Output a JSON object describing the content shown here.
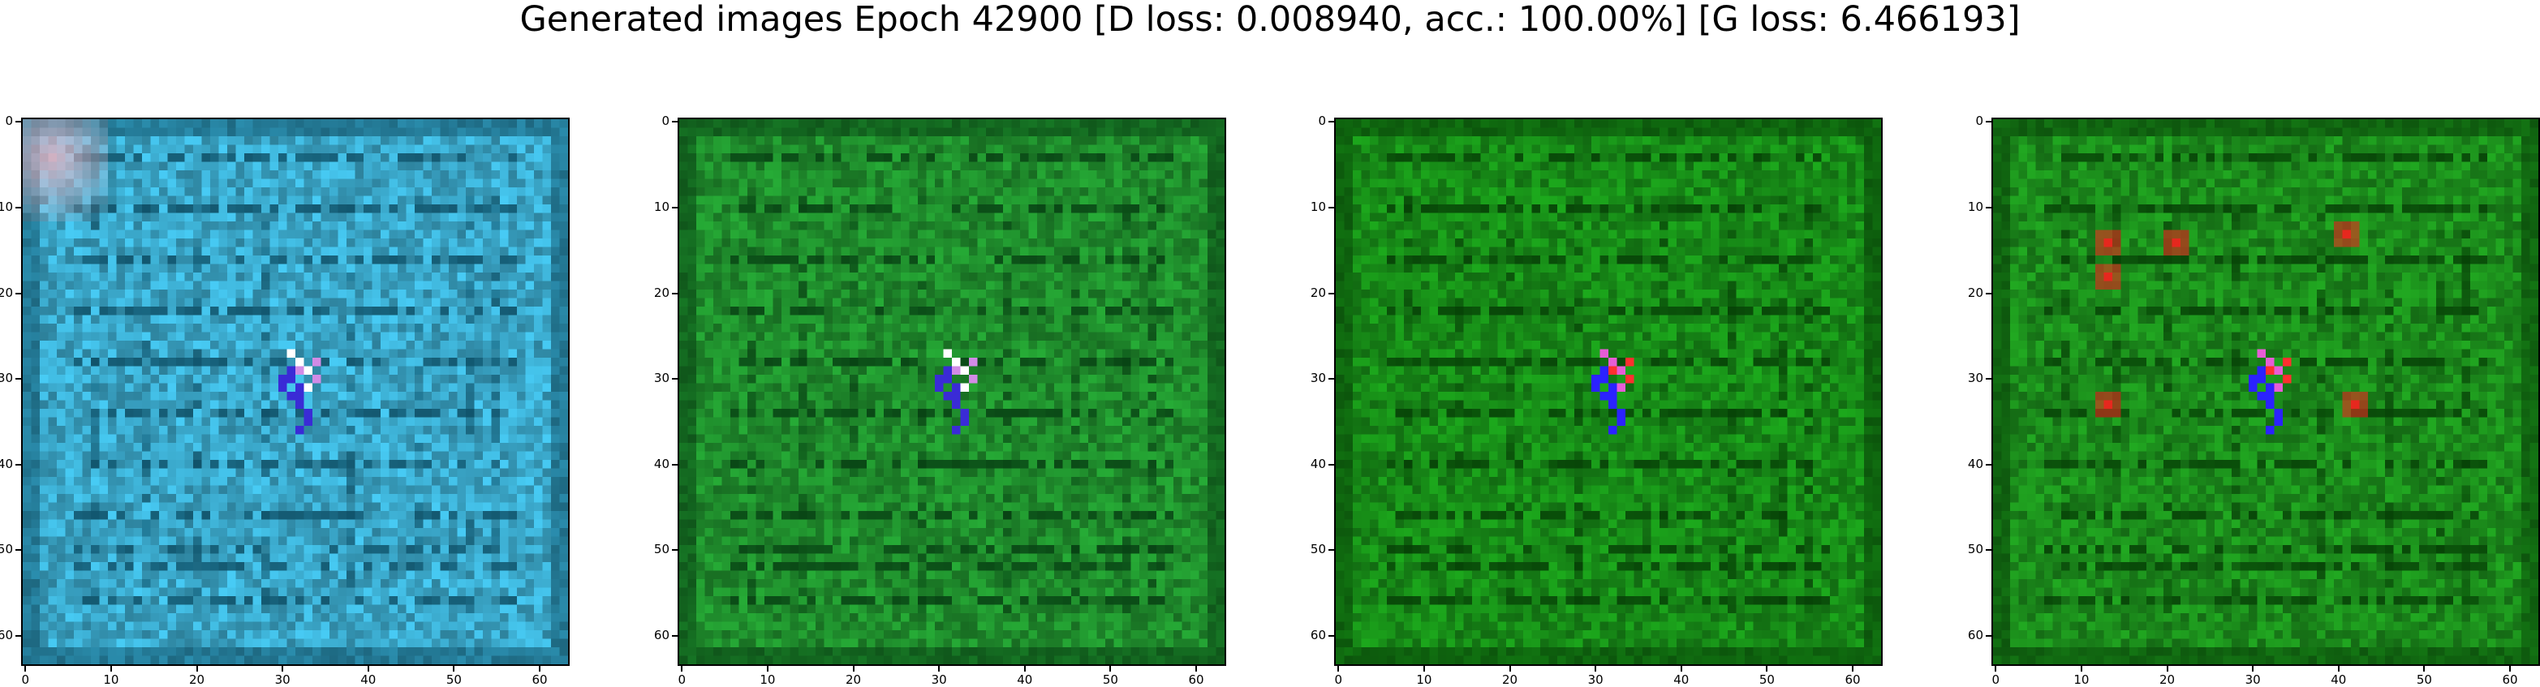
{
  "figure": {
    "title": "Generated images Epoch 42900 [D loss: 0.008940, acc.: 100.00%] [G loss: 6.466193]"
  },
  "axes": {
    "x_ticks": [
      "0",
      "10",
      "20",
      "30",
      "40",
      "50",
      "60"
    ],
    "y_ticks": [
      "0",
      "10",
      "20",
      "30",
      "40",
      "50",
      "60"
    ],
    "range": [
      0,
      63
    ]
  },
  "panels": [
    {
      "name": "generated-image-1",
      "background": "#3aa6c8",
      "stripe": "#0e4f66",
      "blob": [
        "#ffffff",
        "#3a2bd6",
        "#d28be6"
      ],
      "corner_tint": "#e9b3c2",
      "red_spots": []
    },
    {
      "name": "generated-image-2",
      "background": "#1f8c2c",
      "stripe": "#074013",
      "blob": [
        "#ffffff",
        "#3a2bd6",
        "#d28be6"
      ],
      "corner_tint": null,
      "red_spots": []
    },
    {
      "name": "generated-image-3",
      "background": "#178a17",
      "stripe": "#063f06",
      "blob": [
        "#e85dd6",
        "#2b22ff",
        "#ff2f2f"
      ],
      "corner_tint": null,
      "red_spots": []
    },
    {
      "name": "generated-image-4",
      "background": "#1b8a1b",
      "stripe": "#064006",
      "blob": [
        "#e85dd6",
        "#2b22ff",
        "#ff2f2f"
      ],
      "corner_tint": null,
      "red_spots": [
        [
          13,
          14
        ],
        [
          21,
          14
        ],
        [
          13,
          18
        ],
        [
          13,
          33
        ],
        [
          41,
          13
        ],
        [
          42,
          33
        ]
      ]
    }
  ]
}
